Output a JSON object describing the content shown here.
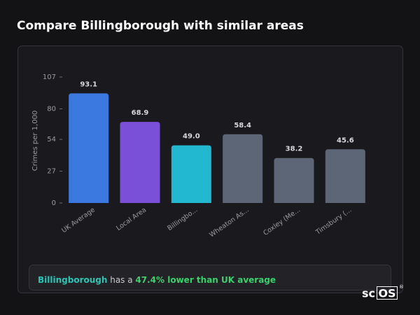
{
  "header": {
    "title": "Compare Billingborough with similar areas"
  },
  "chart_data": {
    "type": "bar",
    "y_label": "Crimes per 1,000",
    "categories": [
      "UK Average",
      "Local Area",
      "Billingbo...",
      "Wheaton As...",
      "Coxley (Me...",
      "Timsbury (..."
    ],
    "values": [
      93.1,
      68.9,
      49.0,
      58.4,
      38.2,
      45.6
    ],
    "value_labels": [
      "93.1",
      "68.9",
      "49.0",
      "58.4",
      "38.2",
      "45.6"
    ],
    "colors": [
      "#3b78e0",
      "#7b50d8",
      "#22b9d0",
      "#5d6676",
      "#5d6676",
      "#5d6676"
    ],
    "ylim": [
      0,
      107
    ],
    "yticks": [
      0,
      27,
      54,
      80,
      107
    ],
    "grid": false
  },
  "summary": {
    "place": "Billingborough",
    "connector": " has a ",
    "highlight": "47.4% lower than UK average"
  },
  "logo": {
    "prefix": "sc",
    "boxed": "OS",
    "mark": "®"
  }
}
